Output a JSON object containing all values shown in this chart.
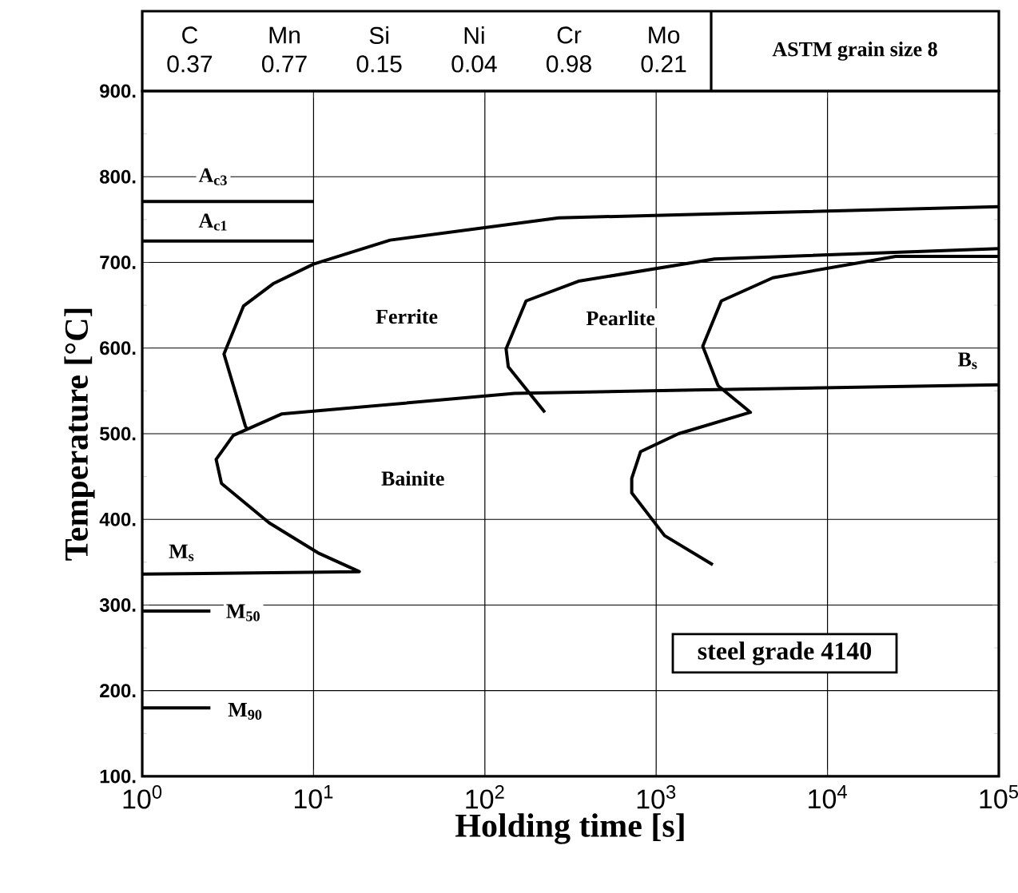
{
  "chart_data": {
    "type": "line",
    "xlabel": "Holding time  [s]",
    "ylabel": "Temperature  [°C]",
    "log": "x",
    "grid": true,
    "marker": "none",
    "line_style": "solid",
    "xlim": [
      1,
      100000
    ],
    "ylim": [
      100,
      900
    ],
    "xticks": [
      {
        "value": 1,
        "label": "10$^{0}$"
      },
      {
        "value": 10,
        "label": "10$^{1}$"
      },
      {
        "value": 100,
        "label": "10$^{2}$"
      },
      {
        "value": 1000,
        "label": "10$^{3}$"
      },
      {
        "value": 10000,
        "label": "10$^{4}$"
      },
      {
        "value": 100000,
        "label": "10$^{5}$"
      }
    ],
    "yticks": [
      {
        "value": 100,
        "label": "100."
      },
      {
        "value": 200,
        "label": "200."
      },
      {
        "value": 300,
        "label": "300."
      },
      {
        "value": 400,
        "label": "400."
      },
      {
        "value": 500,
        "label": "500."
      },
      {
        "value": 600,
        "label": "600."
      },
      {
        "value": 700,
        "label": "700."
      },
      {
        "value": 800,
        "label": "800."
      },
      {
        "value": 900,
        "label": "900."
      }
    ],
    "series": [
      {
        "color": "#000000",
        "x": [
          100000,
          2700,
          270,
          28,
          10,
          5.8,
          3.9,
          3.0,
          4.0,
          4.1
        ],
        "values": [
          765,
          757,
          752,
          726,
          698,
          675,
          649,
          593,
          509,
          505
        ]
      },
      {
        "color": "#000000",
        "x": [
          100000,
          1660,
          149,
          6.5,
          3.4,
          2.7,
          2.9,
          5.5,
          10.6,
          18.5,
          1
        ],
        "values": [
          557,
          551,
          547,
          523,
          498,
          470,
          442,
          396,
          361,
          339,
          336
        ]
      },
      {
        "color": "#000000",
        "x": [
          100000,
          2190,
          352,
          174,
          133,
          137,
          224
        ],
        "values": [
          716,
          704,
          678,
          655,
          599,
          578,
          525
        ]
      },
      {
        "color": "#000000",
        "x": [
          100000,
          25000,
          4800,
          2400,
          1870,
          2300,
          3550,
          1350,
          810,
          720,
          720,
          1120,
          2140
        ],
        "values": [
          707,
          707,
          682,
          655,
          602,
          556,
          525,
          500,
          479,
          448,
          431,
          381,
          347
        ]
      },
      {
        "color": "#000000",
        "x": [
          1,
          10
        ],
        "values": [
          771,
          771
        ]
      },
      {
        "color": "#000000",
        "x": [
          1,
          10
        ],
        "values": [
          725,
          725
        ]
      },
      {
        "color": "#000000",
        "x": [
          1,
          2.5
        ],
        "values": [
          293,
          293
        ]
      },
      {
        "color": "#000000",
        "x": [
          1,
          2.5
        ],
        "values": [
          180,
          180
        ]
      }
    ],
    "annotations": [
      "C",
      "0.37",
      "Mn",
      "0.77",
      "Si",
      "0.15",
      "Ni",
      "0.04",
      "Cr",
      "0.98",
      "Mo",
      "0.21",
      "ASTM grain size 8",
      "steel grade 4140",
      "Ferrite",
      "Pearlite",
      "Bainite",
      "A$_{c3}$",
      "A$_{c1}$",
      "M$_{s}$",
      "M$_{50}$",
      "M$_{90}$",
      "B$_{s}$"
    ]
  }
}
